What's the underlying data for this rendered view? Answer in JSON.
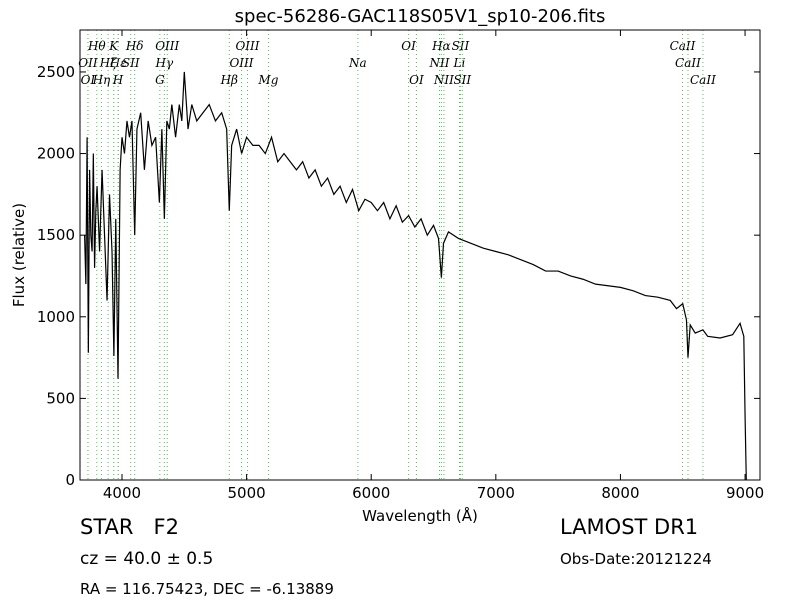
{
  "chart_data": {
    "type": "line",
    "title": "spec-56286-GAC118S05V1_sp10-206.fits",
    "x_label": "Wavelength (Å)",
    "y_label": "Flux (relative)",
    "xlim": [
      3663,
      9120
    ],
    "ylim": [
      0,
      2757
    ],
    "xticks": [
      4000,
      5000,
      6000,
      7000,
      8000,
      9000
    ],
    "yticks": [
      0,
      500,
      1000,
      1500,
      2000,
      2500
    ],
    "x": [
      3700,
      3710,
      3720,
      3730,
      3740,
      3750,
      3760,
      3770,
      3780,
      3790,
      3800,
      3820,
      3840,
      3860,
      3880,
      3900,
      3920,
      3935,
      3950,
      3968,
      3985,
      4000,
      4020,
      4040,
      4060,
      4080,
      4102,
      4120,
      4150,
      4180,
      4210,
      4240,
      4270,
      4300,
      4320,
      4340,
      4360,
      4380,
      4400,
      4430,
      4460,
      4480,
      4500,
      4530,
      4560,
      4600,
      4650,
      4700,
      4750,
      4800,
      4840,
      4861,
      4880,
      4920,
      4960,
      5000,
      5050,
      5100,
      5150,
      5200,
      5250,
      5300,
      5350,
      5400,
      5450,
      5500,
      5550,
      5600,
      5650,
      5700,
      5750,
      5800,
      5850,
      5900,
      5950,
      6000,
      6050,
      6100,
      6150,
      6200,
      6250,
      6300,
      6350,
      6400,
      6450,
      6500,
      6540,
      6563,
      6580,
      6620,
      6700,
      6800,
      6900,
      7000,
      7100,
      7200,
      7300,
      7400,
      7500,
      7600,
      7700,
      7800,
      7900,
      8000,
      8100,
      8200,
      8300,
      8400,
      8450,
      8500,
      8530,
      8542,
      8560,
      8600,
      8662,
      8700,
      8800,
      8900,
      8960,
      8990,
      9000,
      9010
    ],
    "series": [
      {
        "color": "#000000",
        "values": [
          1500,
          1200,
          2100,
          780,
          1900,
          1500,
          1400,
          2000,
          1300,
          1650,
          1800,
          1400,
          1900,
          1500,
          1100,
          1750,
          1400,
          760,
          1600,
          620,
          1900,
          2100,
          2000,
          2200,
          2100,
          2200,
          1500,
          2150,
          2250,
          1900,
          2200,
          2050,
          2100,
          1700,
          2150,
          1600,
          2200,
          2150,
          2300,
          2100,
          2300,
          2200,
          2500,
          2150,
          2300,
          2200,
          2250,
          2300,
          2200,
          2250,
          2150,
          1650,
          2050,
          2150,
          2000,
          2100,
          2050,
          2050,
          2000,
          2100,
          1950,
          2000,
          1950,
          1900,
          1950,
          1850,
          1900,
          1800,
          1850,
          1750,
          1800,
          1700,
          1780,
          1650,
          1720,
          1700,
          1650,
          1700,
          1600,
          1680,
          1580,
          1620,
          1550,
          1600,
          1500,
          1560,
          1480,
          1240,
          1450,
          1520,
          1480,
          1450,
          1420,
          1400,
          1380,
          1350,
          1320,
          1280,
          1280,
          1250,
          1230,
          1200,
          1190,
          1180,
          1160,
          1130,
          1120,
          1100,
          1050,
          1080,
          980,
          750,
          950,
          900,
          920,
          880,
          870,
          890,
          960,
          880,
          400,
          0
        ]
      }
    ],
    "line_color": "#55bb55",
    "line_labels": [
      [
        {
          "label": "Hθ",
          "wavelength": 3798
        },
        {
          "label": "K",
          "wavelength": 3934
        },
        {
          "label": "Hδ",
          "wavelength": 4102
        },
        {
          "label": "OIII",
          "wavelength": 4363
        },
        {
          "label": "OIII",
          "wavelength": 5007
        },
        {
          "label": "OI",
          "wavelength": 6300
        },
        {
          "label": "Hα",
          "wavelength": 6563
        },
        {
          "label": "SII",
          "wavelength": 6716
        },
        {
          "label": "CaII",
          "wavelength": 8498
        }
      ],
      [
        {
          "label": "OII",
          "wavelength": 3727
        },
        {
          "label": "Hζ",
          "wavelength": 3889
        },
        {
          "label": "Hε",
          "wavelength": 3970
        },
        {
          "label": "SII",
          "wavelength": 4070
        },
        {
          "label": "Hγ",
          "wavelength": 4340
        },
        {
          "label": "OIII",
          "wavelength": 4959
        },
        {
          "label": "Na",
          "wavelength": 5893
        },
        {
          "label": "NII",
          "wavelength": 6548
        },
        {
          "label": "Li",
          "wavelength": 6708
        },
        {
          "label": "CaII",
          "wavelength": 8542
        }
      ],
      [
        {
          "label": "OI",
          "wavelength": 3727
        },
        {
          "label": "Hη",
          "wavelength": 3835
        },
        {
          "label": "H",
          "wavelength": 3968
        },
        {
          "label": "G",
          "wavelength": 4304
        },
        {
          "label": "Hβ",
          "wavelength": 4861
        },
        {
          "label": "Mg",
          "wavelength": 5175
        },
        {
          "label": "OI",
          "wavelength": 6363
        },
        {
          "label": "NII",
          "wavelength": 6583
        },
        {
          "label": "SII",
          "wavelength": 6731
        },
        {
          "label": "CaII",
          "wavelength": 8662
        }
      ]
    ],
    "class_text": "STAR   F2",
    "survey": "LAMOST DR1",
    "redshift": "cz = 40.0 ± 0.5",
    "obs_date": "Obs-Date:20121224",
    "coords": "RA = 116.75423, DEC = -6.13889"
  }
}
